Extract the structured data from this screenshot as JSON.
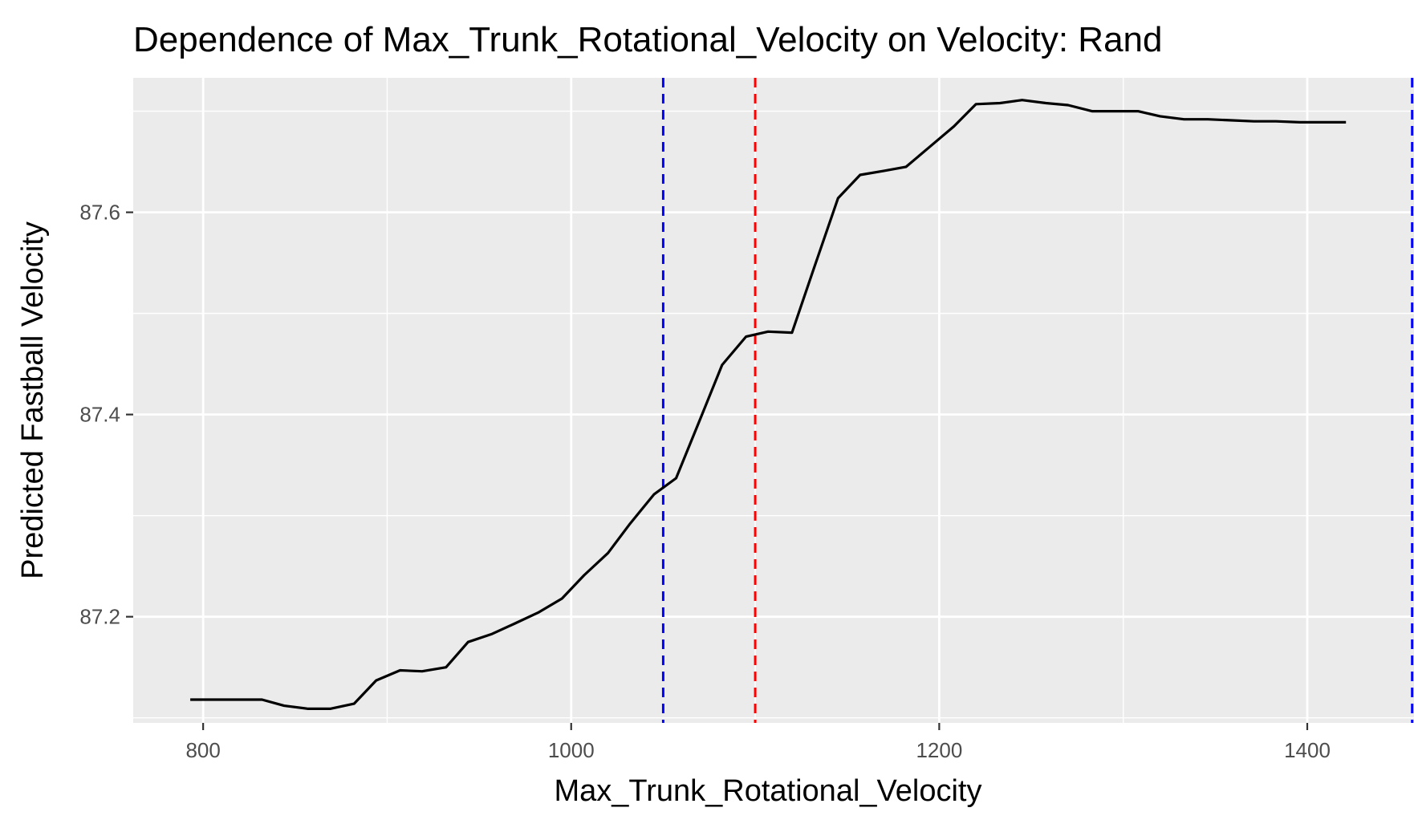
{
  "chart_data": {
    "type": "line",
    "title": "Dependence of Max_Trunk_Rotational_Velocity on Velocity: Rand",
    "xlabel": "Max_Trunk_Rotational_Velocity",
    "ylabel": "Predicted Fastball Velocity",
    "xlim": [
      762,
      1458
    ],
    "ylim": [
      87.095,
      87.733
    ],
    "x_ticks": [
      800,
      1000,
      1200,
      1400
    ],
    "x_tick_labels": [
      "800",
      "1000",
      "1200",
      "1400"
    ],
    "y_ticks": [
      87.2,
      87.4,
      87.6
    ],
    "y_tick_labels": [
      "87.2",
      "87.4",
      "87.6"
    ],
    "x_minor_ticks": [
      900,
      1100,
      1300
    ],
    "y_minor_ticks": [
      87.1,
      87.3,
      87.5,
      87.7
    ],
    "grid": true,
    "background": "#ebebeb",
    "series": [
      {
        "color": "#000000",
        "x": [
          793,
          806,
          819,
          832,
          844,
          857,
          869,
          882,
          894,
          907,
          919,
          932,
          944,
          957,
          969,
          982,
          995,
          1007,
          1020,
          1032,
          1045,
          1057,
          1070,
          1082,
          1095,
          1107,
          1120,
          1132,
          1145,
          1157,
          1170,
          1182,
          1195,
          1208,
          1220,
          1233,
          1245,
          1258,
          1270,
          1283,
          1295,
          1308,
          1320,
          1333,
          1346,
          1358,
          1371,
          1383,
          1396,
          1408,
          1421
        ],
        "values": [
          87.118,
          87.118,
          87.118,
          87.118,
          87.112,
          87.109,
          87.109,
          87.114,
          87.137,
          87.147,
          87.146,
          87.15,
          87.175,
          87.183,
          87.193,
          87.204,
          87.218,
          87.241,
          87.263,
          87.292,
          87.321,
          87.337,
          87.395,
          87.449,
          87.477,
          87.482,
          87.481,
          87.545,
          87.614,
          87.637,
          87.641,
          87.645,
          87.665,
          87.685,
          87.707,
          87.708,
          87.711,
          87.708,
          87.706,
          87.7,
          87.7,
          87.7,
          87.695,
          87.692,
          87.692,
          87.691,
          87.69,
          87.69,
          87.689,
          87.689,
          87.689
        ]
      }
    ],
    "reference_lines": [
      {
        "orientation": "vertical",
        "x": 1050,
        "color": "#0000ff",
        "style": "dashed"
      },
      {
        "orientation": "vertical",
        "x": 1100,
        "color": "#ff0000",
        "style": "dashed"
      },
      {
        "orientation": "vertical",
        "x": 1457,
        "color": "#0000ff",
        "style": "dashed"
      }
    ]
  }
}
